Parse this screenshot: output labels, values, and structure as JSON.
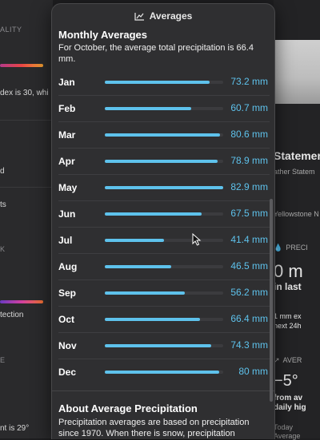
{
  "popover": {
    "title": "Averages",
    "icon": "chart-line-icon",
    "section_title": "Monthly Averages",
    "section_desc": "For October, the average total precipitation is 66.4 mm.",
    "max_value": 82.9,
    "months": [
      {
        "label": "Jan",
        "value": 73.2,
        "display": "73.2 mm"
      },
      {
        "label": "Feb",
        "value": 60.7,
        "display": "60.7 mm"
      },
      {
        "label": "Mar",
        "value": 80.6,
        "display": "80.6 mm"
      },
      {
        "label": "Apr",
        "value": 78.9,
        "display": "78.9 mm"
      },
      {
        "label": "May",
        "value": 82.9,
        "display": "82.9 mm"
      },
      {
        "label": "Jun",
        "value": 67.5,
        "display": "67.5 mm"
      },
      {
        "label": "Jul",
        "value": 41.4,
        "display": "41.4 mm"
      },
      {
        "label": "Aug",
        "value": 46.5,
        "display": "46.5 mm"
      },
      {
        "label": "Sep",
        "value": 56.2,
        "display": "56.2 mm"
      },
      {
        "label": "Oct",
        "value": 66.4,
        "display": "66.4 mm"
      },
      {
        "label": "Nov",
        "value": 74.3,
        "display": "74.3 mm"
      },
      {
        "label": "Dec",
        "value": 80.0,
        "display": "80 mm"
      }
    ],
    "about_title": "About Average Precipitation",
    "about_body": "Precipitation averages are based on precipitation since 1970. When there is snow, precipitation"
  },
  "background_left": {
    "aqi_header": "ALITY",
    "aqi_text": "dex is 30, whi",
    "item_d": "d",
    "item_ts": "ts",
    "wind_header": "K",
    "uv_text": "tection",
    "feels_header": "E",
    "feels_text": "nt is 29°"
  },
  "background_right": {
    "statement_title": "Statement",
    "statement_sub": "ather Statem",
    "location": "Yellowstone N",
    "precip_header": "PRECI",
    "precip_value": "0 m",
    "precip_sub": "in last",
    "precip_note_1": "1 mm ex",
    "precip_note_2": "next 24h",
    "avg_header": "AVER",
    "avg_value": "−5°",
    "avg_sub_1": "from av",
    "avg_sub_2": "daily hig",
    "today_1": "Today",
    "today_2": "Average"
  },
  "colors": {
    "accent": "#5ec2ec",
    "popover_bg": "#2f2f31"
  }
}
